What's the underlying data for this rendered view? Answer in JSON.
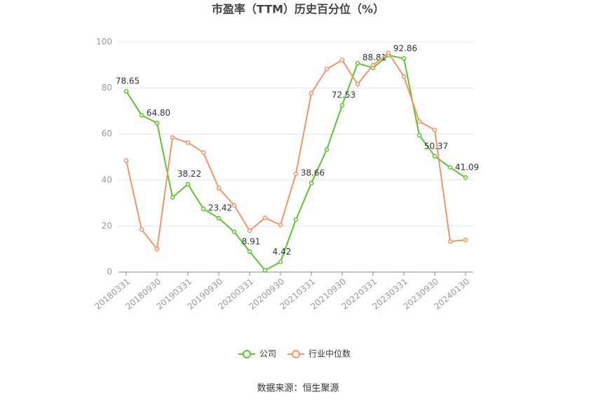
{
  "chart_data": {
    "type": "line",
    "title": "市盈率（TTM）历史百分位（%）",
    "source": "数据来源：恒生聚源",
    "categories": [
      "20180331",
      null,
      "20180930",
      null,
      "20190331",
      null,
      "20190930",
      null,
      "20200331",
      null,
      "20200930",
      null,
      "20210331",
      null,
      "20210930",
      null,
      "20220331",
      null,
      "20230331",
      null,
      "20230930",
      null,
      "20240130"
    ],
    "series": [
      {
        "name": "公司",
        "color": "#5dc52f",
        "values": [
          78.65,
          68.2,
          64.8,
          32.5,
          38.22,
          27.5,
          23.42,
          17.5,
          8.91,
          0.8,
          4.42,
          22.8,
          38.66,
          53.3,
          72.53,
          90.8,
          88.81,
          94.3,
          92.86,
          59.5,
          50.37,
          45.5,
          41.09
        ],
        "value_labels": [
          "78.65",
          null,
          "64.80",
          null,
          "38.22",
          null,
          "23.42",
          null,
          "8.91",
          null,
          "4.42",
          null,
          "38.66",
          null,
          "72.53",
          null,
          "88.81",
          null,
          "92.86",
          null,
          "50.37",
          null,
          "41.09"
        ]
      },
      {
        "name": "行业中位数",
        "color": "#f4936a",
        "values": [
          48.5,
          18.5,
          10,
          58.5,
          56.3,
          52,
          36.5,
          29,
          18,
          23.6,
          20.5,
          42.7,
          77.8,
          88.3,
          92.2,
          81.7,
          90,
          95.3,
          85,
          65.5,
          61.8,
          13.3,
          14
        ]
      }
    ],
    "ylim": [
      0,
      100
    ],
    "yticks": [
      0,
      20,
      40,
      60,
      80,
      100
    ],
    "grid": true,
    "legend": "bottom"
  }
}
